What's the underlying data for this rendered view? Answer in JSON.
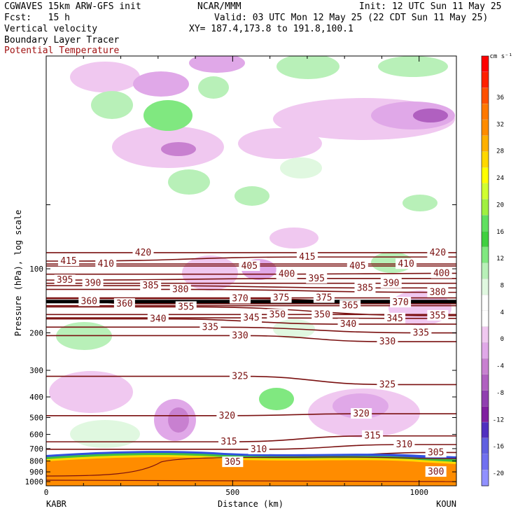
{
  "header": {
    "model": "CGWAVES 15km ARW-GFS init",
    "org": "NCAR/MMM",
    "init": "Init: 12 UTC Sun 11 May 25",
    "fcst": "Fcst:   15 h",
    "valid": "Valid: 03 UTC Mon 12 May 25 (22 CDT Sun 11 May 25)",
    "field1": "Vertical velocity",
    "field2": "Boundary Layer Tracer",
    "field3": "Potential Temperature",
    "xy": "XY= 187.4,173.8 to 191.8,100.1"
  },
  "colors": {
    "theta_line": "#7a1010",
    "terrain": "#ff8c00",
    "frame": "#000000"
  },
  "chart_data": {
    "type": "heatmap",
    "xlabel": "Distance (km)",
    "ylabel": "Pressure (hPa), log scale",
    "xlim": [
      0,
      1100
    ],
    "x_ticks": [
      "0",
      "500",
      "1000"
    ],
    "y_scale": "log",
    "y_ticks": [
      "100",
      "200",
      "300",
      "400",
      "500",
      "600",
      "700",
      "800",
      "900",
      "1000"
    ],
    "start_label": "KABR",
    "end_label": "KOUN",
    "colorbar": {
      "units": "cm s⁻¹",
      "labels": [
        "36",
        "32",
        "28",
        "24",
        "20",
        "16",
        "12",
        "8",
        "4",
        "0",
        "-4",
        "-8",
        "-12",
        "-16",
        "-20"
      ],
      "colors": [
        "#ff0000",
        "#ff2000",
        "#ff5000",
        "#ff7800",
        "#ff8c00",
        "#ffb000",
        "#ffd800",
        "#ffff00",
        "#d0ff30",
        "#a0f040",
        "#60e060",
        "#40d040",
        "#80e880",
        "#b8f0b8",
        "#e0f8e0",
        "#ffffff",
        "#ffffff",
        "#f0c8f0",
        "#e0a8e8",
        "#c880d0",
        "#b060c0",
        "#9040b0",
        "#8020a0",
        "#5030c0",
        "#6060e0",
        "#7070f0",
        "#9090ff"
      ]
    },
    "theta_contours": {
      "series_unit": "K",
      "labels": [
        {
          "value": 420,
          "x": 260,
          "p": 84
        },
        {
          "value": 420,
          "x": 1050,
          "p": 84
        },
        {
          "value": 415,
          "x": 60,
          "p": 92
        },
        {
          "value": 415,
          "x": 700,
          "p": 88
        },
        {
          "value": 410,
          "x": 160,
          "p": 95
        },
        {
          "value": 410,
          "x": 965,
          "p": 95
        },
        {
          "value": 405,
          "x": 545,
          "p": 97
        },
        {
          "value": 405,
          "x": 835,
          "p": 97
        },
        {
          "value": 400,
          "x": 645,
          "p": 106
        },
        {
          "value": 400,
          "x": 1060,
          "p": 105
        },
        {
          "value": 395,
          "x": 50,
          "p": 113
        },
        {
          "value": 395,
          "x": 725,
          "p": 111
        },
        {
          "value": 390,
          "x": 125,
          "p": 117
        },
        {
          "value": 390,
          "x": 925,
          "p": 117
        },
        {
          "value": 385,
          "x": 280,
          "p": 120
        },
        {
          "value": 385,
          "x": 855,
          "p": 123
        },
        {
          "value": 380,
          "x": 360,
          "p": 125
        },
        {
          "value": 380,
          "x": 1050,
          "p": 129
        },
        {
          "value": 375,
          "x": 630,
          "p": 137
        },
        {
          "value": 375,
          "x": 745,
          "p": 137
        },
        {
          "value": 370,
          "x": 520,
          "p": 138
        },
        {
          "value": 370,
          "x": 950,
          "p": 144
        },
        {
          "value": 365,
          "x": 815,
          "p": 149
        },
        {
          "value": 360,
          "x": 115,
          "p": 142
        },
        {
          "value": 360,
          "x": 210,
          "p": 146
        },
        {
          "value": 355,
          "x": 375,
          "p": 151
        },
        {
          "value": 355,
          "x": 1050,
          "p": 166
        },
        {
          "value": 350,
          "x": 620,
          "p": 164
        },
        {
          "value": 350,
          "x": 740,
          "p": 164
        },
        {
          "value": 345,
          "x": 550,
          "p": 170
        },
        {
          "value": 345,
          "x": 935,
          "p": 171
        },
        {
          "value": 340,
          "x": 300,
          "p": 172
        },
        {
          "value": 340,
          "x": 810,
          "p": 182
        },
        {
          "value": 335,
          "x": 440,
          "p": 188
        },
        {
          "value": 335,
          "x": 1005,
          "p": 200
        },
        {
          "value": 330,
          "x": 520,
          "p": 206
        },
        {
          "value": 330,
          "x": 915,
          "p": 220
        },
        {
          "value": 325,
          "x": 520,
          "p": 320
        },
        {
          "value": 325,
          "x": 915,
          "p": 350
        },
        {
          "value": 320,
          "x": 485,
          "p": 490
        },
        {
          "value": 320,
          "x": 845,
          "p": 480
        },
        {
          "value": 315,
          "x": 490,
          "p": 650
        },
        {
          "value": 315,
          "x": 875,
          "p": 610
        },
        {
          "value": 310,
          "x": 570,
          "p": 705
        },
        {
          "value": 310,
          "x": 960,
          "p": 670
        },
        {
          "value": 305,
          "x": 500,
          "p": 810
        },
        {
          "value": 305,
          "x": 1045,
          "p": 730
        },
        {
          "value": 300,
          "x": 1045,
          "p": 900
        }
      ]
    }
  }
}
